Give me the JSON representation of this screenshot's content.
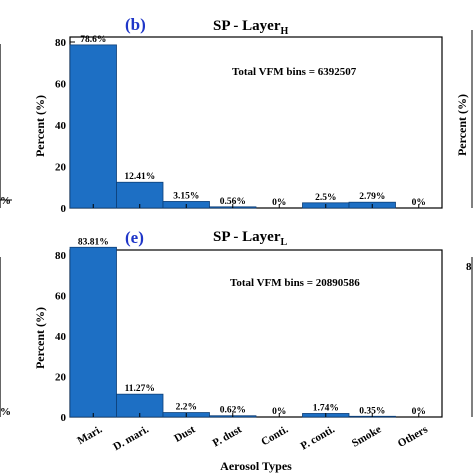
{
  "colors": {
    "bar": "#1d6fc4",
    "bar_edge": "#0d3f78",
    "panel_label": "#1f36c8"
  },
  "neighbors": {
    "left_top_tick": "%",
    "left_bottom_tick": "%",
    "right_ylabel": "Percent (%)",
    "right_tick": "8"
  },
  "chart_data": [
    {
      "type": "bar",
      "panel_label": "(b)",
      "title_main": "SP - Layer",
      "title_sub": "H",
      "annotation": "Total VFM bins = 6392507",
      "categories": [
        "Mari.",
        "D. mari.",
        "Dust",
        "P. dust",
        "Conti.",
        "P. conti.",
        "Smoke",
        "Others"
      ],
      "values": [
        78.6,
        12.41,
        3.15,
        0.56,
        0,
        2.5,
        2.79,
        0
      ],
      "data_labels": [
        "78.6%",
        "12.41%",
        "3.15%",
        "0.56%",
        "0%",
        "2.5%",
        "2.79%",
        "0%"
      ],
      "ylabel": "Percent (%)",
      "xlabel": "",
      "ylim": [
        0,
        80
      ],
      "yticks": [
        0,
        20,
        40,
        60,
        80
      ],
      "show_xticklabels": false,
      "grid": false
    },
    {
      "type": "bar",
      "panel_label": "(e)",
      "title_main": "SP - Layer",
      "title_sub": "L",
      "annotation": "Total VFM bins = 20890586",
      "categories": [
        "Mari.",
        "D. mari.",
        "Dust",
        "P. dust",
        "Conti.",
        "P. conti.",
        "Smoke",
        "Others"
      ],
      "values": [
        83.81,
        11.27,
        2.2,
        0.62,
        0,
        1.74,
        0.35,
        0
      ],
      "data_labels": [
        "83.81%",
        "11.27%",
        "2.2%",
        "0.62%",
        "0%",
        "1.74%",
        "0.35%",
        "0%"
      ],
      "ylabel": "Percent (%)",
      "xlabel": "Aerosol Types",
      "ylim": [
        0,
        80
      ],
      "yticks": [
        0,
        20,
        40,
        60,
        80
      ],
      "show_xticklabels": true,
      "grid": false
    }
  ]
}
